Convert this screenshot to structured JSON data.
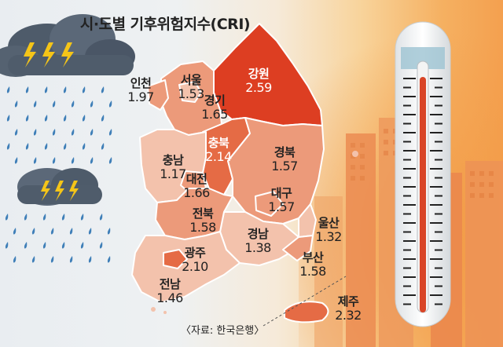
{
  "title": "시·도별 기후위험지수(CRI)",
  "source": "〈자료: 한국은행〉",
  "colors": {
    "highest": "#dd3e22",
    "high": "#e56b45",
    "medium": "#ec9a7a",
    "low": "#f3c2ac"
  },
  "regions": [
    {
      "name": "인천",
      "value": "1.97",
      "level": "medium"
    },
    {
      "name": "서울",
      "value": "1.53",
      "level": "low"
    },
    {
      "name": "경기",
      "value": "1.65",
      "level": "medium"
    },
    {
      "name": "강원",
      "value": "2.59",
      "level": "highest"
    },
    {
      "name": "충북",
      "value": "2.14",
      "level": "high"
    },
    {
      "name": "충남",
      "value": "1.17",
      "level": "low"
    },
    {
      "name": "대전",
      "value": "1.66",
      "level": "medium"
    },
    {
      "name": "경북",
      "value": "1.57",
      "level": "medium"
    },
    {
      "name": "대구",
      "value": "1.57",
      "level": "medium"
    },
    {
      "name": "전북",
      "value": "1.58",
      "level": "medium"
    },
    {
      "name": "울산",
      "value": "1.32",
      "level": "low"
    },
    {
      "name": "경남",
      "value": "1.38",
      "level": "low"
    },
    {
      "name": "광주",
      "value": "2.10",
      "level": "high"
    },
    {
      "name": "부산",
      "value": "1.58",
      "level": "medium"
    },
    {
      "name": "전남",
      "value": "1.46",
      "level": "low"
    },
    {
      "name": "제주",
      "value": "2.32",
      "level": "high"
    }
  ]
}
